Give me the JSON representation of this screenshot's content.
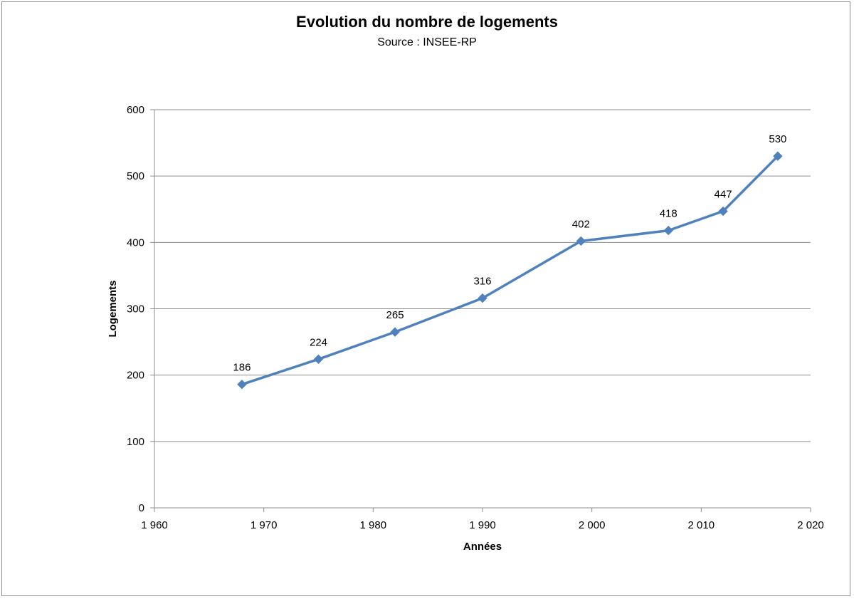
{
  "chart_data": {
    "type": "line",
    "title": "Evolution du nombre de logements",
    "subtitle": "Source : INSEE-RP",
    "xlabel": "Années",
    "ylabel": "Logements",
    "xlim": [
      1960,
      2020
    ],
    "ylim": [
      0,
      600
    ],
    "x_ticks": [
      1960,
      1970,
      1980,
      1990,
      2000,
      2010,
      2020
    ],
    "x_tick_labels": [
      "1 960",
      "1 970",
      "1 980",
      "1 990",
      "2 000",
      "2 010",
      "2 020"
    ],
    "y_ticks": [
      0,
      100,
      200,
      300,
      400,
      500,
      600
    ],
    "y_tick_labels": [
      "0",
      "100",
      "200",
      "300",
      "400",
      "500",
      "600"
    ],
    "grid": "horizontal",
    "legend": "none",
    "series": [
      {
        "color": "#4f81bd",
        "marker": "diamond",
        "x": [
          1968,
          1975,
          1982,
          1990,
          1999,
          2007,
          2012,
          2017
        ],
        "values": [
          186,
          224,
          265,
          316,
          402,
          418,
          447,
          530
        ],
        "labels": [
          "186",
          "224",
          "265",
          "316",
          "402",
          "418",
          "447",
          "530"
        ]
      }
    ]
  },
  "colors": {
    "gridline": "#8c8c8c",
    "axis": "#8c8c8c",
    "series": "#4f81bd"
  }
}
